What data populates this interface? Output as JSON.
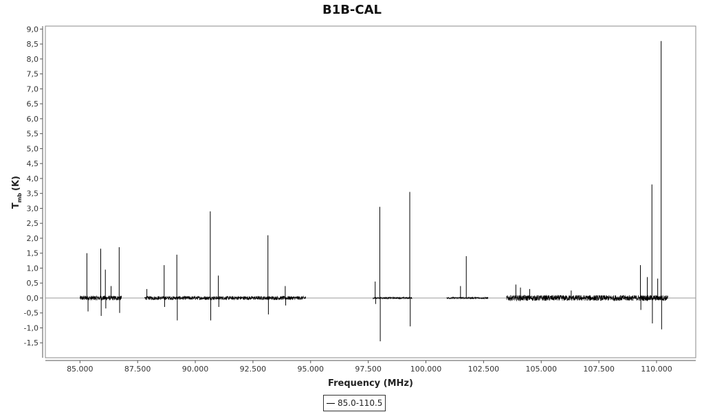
{
  "chart_data": {
    "type": "line",
    "title": "B1B-CAL",
    "xlabel": "Frequency (MHz)",
    "ylabel_main": "T",
    "ylabel_sub": "mb",
    "ylabel_unit": "(K)",
    "xlim": [
      83500,
      111700
    ],
    "ylim": [
      -2.0,
      9.1
    ],
    "x_ticks": [
      85000,
      87500,
      90000,
      92500,
      95000,
      97500,
      100000,
      102500,
      105000,
      107500,
      110000
    ],
    "x_tick_labels": [
      "85.000",
      "87.500",
      "90.000",
      "92.500",
      "95.000",
      "97.500",
      "100.000",
      "102.500",
      "105.000",
      "107.500",
      "110.000"
    ],
    "y_ticks": [
      -1.5,
      -1.0,
      -0.5,
      0.0,
      0.5,
      1.0,
      1.5,
      2.0,
      2.5,
      3.0,
      3.5,
      4.0,
      4.5,
      5.0,
      5.5,
      6.0,
      6.5,
      7.0,
      7.5,
      8.0,
      8.5,
      9.0
    ],
    "y_tick_labels": [
      "-1,5",
      "-1,0",
      "-0,5",
      "0,0",
      "0,5",
      "1,0",
      "1,5",
      "2,0",
      "2,5",
      "3,0",
      "3,5",
      "4,0",
      "4,5",
      "5,0",
      "5,5",
      "6,0",
      "6,5",
      "7,0",
      "7,5",
      "8,0",
      "8,5",
      "9,0"
    ],
    "grid": false,
    "legend_position": "bottom-center",
    "series": [
      {
        "name": "85.0-110.5",
        "color": "#000000",
        "coverage_bands_mhz": [
          [
            85000,
            86800
          ],
          [
            87800,
            94800
          ],
          [
            97700,
            99400
          ],
          [
            100900,
            102700
          ],
          [
            103500,
            110500
          ]
        ],
        "noise_rms": [
          0.05,
          0.04,
          0.02,
          0.02,
          0.06
        ],
        "peaks": [
          {
            "x": 85300,
            "y": 1.5
          },
          {
            "x": 85350,
            "y": -0.45
          },
          {
            "x": 85900,
            "y": 1.65
          },
          {
            "x": 85920,
            "y": -0.6
          },
          {
            "x": 86100,
            "y": 0.95
          },
          {
            "x": 86120,
            "y": -0.35
          },
          {
            "x": 86350,
            "y": 0.4
          },
          {
            "x": 86700,
            "y": 1.7
          },
          {
            "x": 86720,
            "y": -0.5
          },
          {
            "x": 87900,
            "y": 0.3
          },
          {
            "x": 88650,
            "y": 1.1
          },
          {
            "x": 88670,
            "y": -0.3
          },
          {
            "x": 89200,
            "y": 1.45
          },
          {
            "x": 89220,
            "y": -0.75
          },
          {
            "x": 90650,
            "y": 2.9
          },
          {
            "x": 90670,
            "y": -0.75
          },
          {
            "x": 91000,
            "y": 0.75
          },
          {
            "x": 91020,
            "y": -0.3
          },
          {
            "x": 93150,
            "y": 2.1
          },
          {
            "x": 93170,
            "y": -0.55
          },
          {
            "x": 93900,
            "y": 0.4
          },
          {
            "x": 93920,
            "y": -0.25
          },
          {
            "x": 97800,
            "y": 0.55
          },
          {
            "x": 97820,
            "y": -0.2
          },
          {
            "x": 98000,
            "y": 3.05
          },
          {
            "x": 98020,
            "y": -1.45
          },
          {
            "x": 99300,
            "y": 3.55
          },
          {
            "x": 99320,
            "y": -0.95
          },
          {
            "x": 101500,
            "y": 0.4
          },
          {
            "x": 101750,
            "y": 1.4
          },
          {
            "x": 103900,
            "y": 0.45
          },
          {
            "x": 104100,
            "y": 0.35
          },
          {
            "x": 104500,
            "y": 0.3
          },
          {
            "x": 106300,
            "y": 0.25
          },
          {
            "x": 109300,
            "y": 1.1
          },
          {
            "x": 109320,
            "y": -0.4
          },
          {
            "x": 109600,
            "y": 0.7
          },
          {
            "x": 109800,
            "y": 3.8
          },
          {
            "x": 109820,
            "y": -0.85
          },
          {
            "x": 110050,
            "y": 0.65
          },
          {
            "x": 110200,
            "y": 8.6
          },
          {
            "x": 110220,
            "y": -1.05
          }
        ]
      }
    ]
  }
}
